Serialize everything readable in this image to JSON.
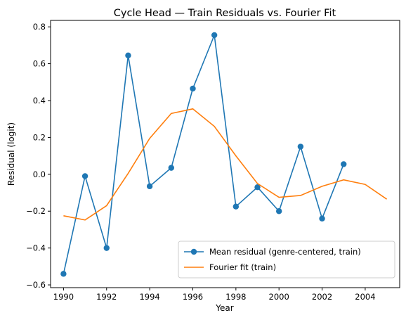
{
  "chart_data": {
    "type": "line",
    "title": "Cycle Head — Train Residuals vs. Fourier Fit",
    "xlabel": "Year",
    "ylabel": "Residual (logit)",
    "xlim": [
      1989.4,
      2005.6
    ],
    "ylim": [
      -0.615,
      0.835
    ],
    "xticks": [
      1990,
      1992,
      1994,
      1996,
      1998,
      2000,
      2002,
      2004
    ],
    "yticks": [
      -0.6,
      -0.4,
      -0.2,
      0.0,
      0.2,
      0.4,
      0.6,
      0.8
    ],
    "ytick_labels": [
      "−0.6",
      "−0.4",
      "−0.2",
      "0.0",
      "0.2",
      "0.4",
      "0.6",
      "0.8"
    ],
    "grid": false,
    "legend_position": "lower-right",
    "series": [
      {
        "name": "Mean residual (genre-centered, train)",
        "color": "#1f77b4",
        "marker": "circle",
        "x": [
          1990,
          1991,
          1992,
          1993,
          1994,
          1995,
          1996,
          1997,
          1998,
          1999,
          2000,
          2001,
          2002,
          2003
        ],
        "y": [
          -0.54,
          -0.01,
          -0.4,
          0.645,
          -0.065,
          0.035,
          0.465,
          0.755,
          -0.175,
          -0.07,
          -0.2,
          0.15,
          -0.24,
          0.055
        ]
      },
      {
        "name": "Fourier fit (train)",
        "color": "#ff7f0e",
        "marker": "none",
        "x": [
          1990,
          1991,
          1992,
          1993,
          1994,
          1995,
          1996,
          1997,
          1998,
          1999,
          2000,
          2001,
          2002,
          2003,
          2004,
          2005
        ],
        "y": [
          -0.225,
          -0.248,
          -0.17,
          0.005,
          0.195,
          0.33,
          0.355,
          0.26,
          0.1,
          -0.05,
          -0.125,
          -0.115,
          -0.065,
          -0.03,
          -0.055,
          -0.135
        ]
      }
    ]
  }
}
